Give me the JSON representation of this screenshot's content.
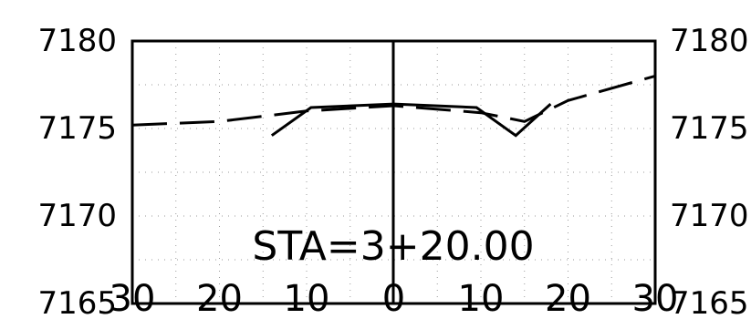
{
  "chart_data": {
    "type": "line",
    "title": "STA=3+20.00",
    "xlim": [
      -30,
      30
    ],
    "ylim": [
      7165,
      7180
    ],
    "x_ticks": [
      "30",
      "20",
      "10",
      "0",
      "10",
      "20",
      "30"
    ],
    "y_ticks_left": [
      "7180",
      "7175",
      "7170",
      "7165"
    ],
    "y_ticks_right": [
      "7180",
      "7175",
      "7170",
      "7165"
    ],
    "grid": true,
    "series": [
      {
        "style": "solid",
        "x": [
          -14,
          -9.5,
          0,
          9.5,
          14,
          18
        ],
        "y": [
          7174.6,
          7176.2,
          7176.4,
          7176.2,
          7174.6,
          7176.4
        ]
      },
      {
        "style": "dashed",
        "x": [
          -30,
          -20,
          -10,
          0,
          10,
          15,
          20,
          30
        ],
        "y": [
          7175.2,
          7175.4,
          7176.0,
          7176.3,
          7175.9,
          7175.4,
          7176.6,
          7178.0
        ]
      }
    ]
  }
}
